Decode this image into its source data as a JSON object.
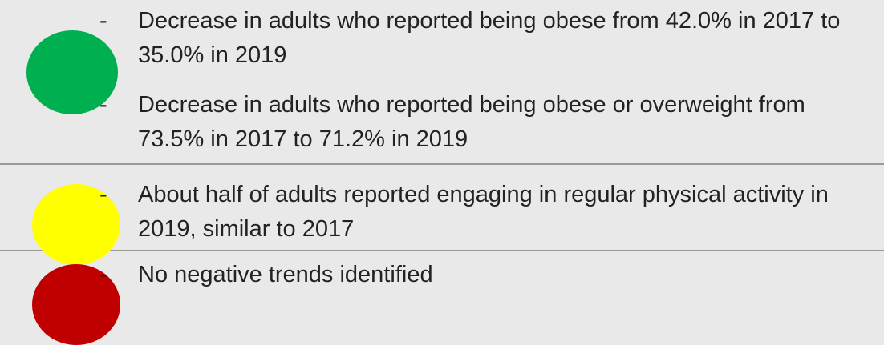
{
  "rows": [
    {
      "color": "#00b050",
      "items": [
        "Decrease in adults who reported being obese from 42.0% in 2017 to 35.0% in 2019",
        "Decrease in adults who reported being obese or overweight from 73.5% in 2017 to 71.2% in 2019"
      ]
    },
    {
      "color": "#ffff00",
      "items": [
        "About half of adults reported engaging in regular physical activity in 2019, similar to 2017"
      ]
    },
    {
      "color": "#c00000",
      "items": [
        "No negative trends identified"
      ]
    }
  ]
}
